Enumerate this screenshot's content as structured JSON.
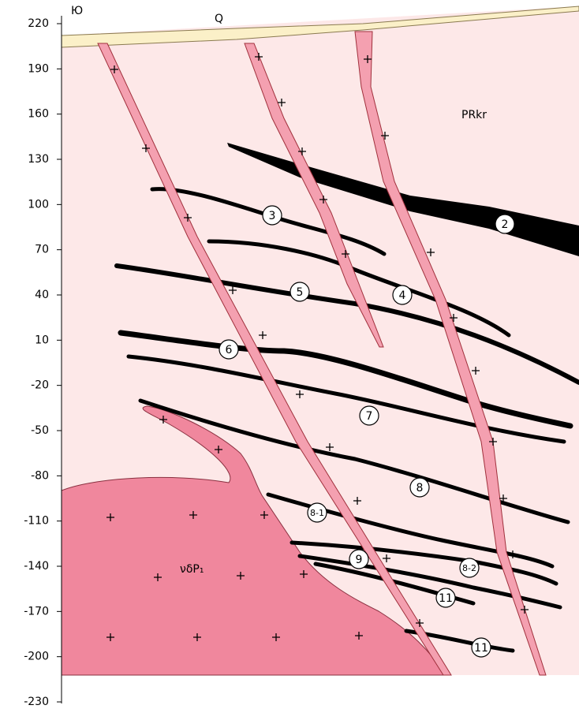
{
  "axis": {
    "ylim": [
      -230,
      220
    ],
    "yticks": [
      220,
      190,
      160,
      130,
      100,
      70,
      40,
      10,
      -20,
      -50,
      -80,
      -110,
      -140,
      -170,
      -200,
      -230
    ]
  },
  "labels": {
    "south": "Ю",
    "quaternary": "Q",
    "host_rock": "PRkr",
    "intrusion": "νδP₁"
  },
  "seams": [
    "2",
    "3",
    "5",
    "4",
    "6",
    "7",
    "8",
    "8-1",
    "9",
    "8-2",
    "11",
    "11"
  ]
}
